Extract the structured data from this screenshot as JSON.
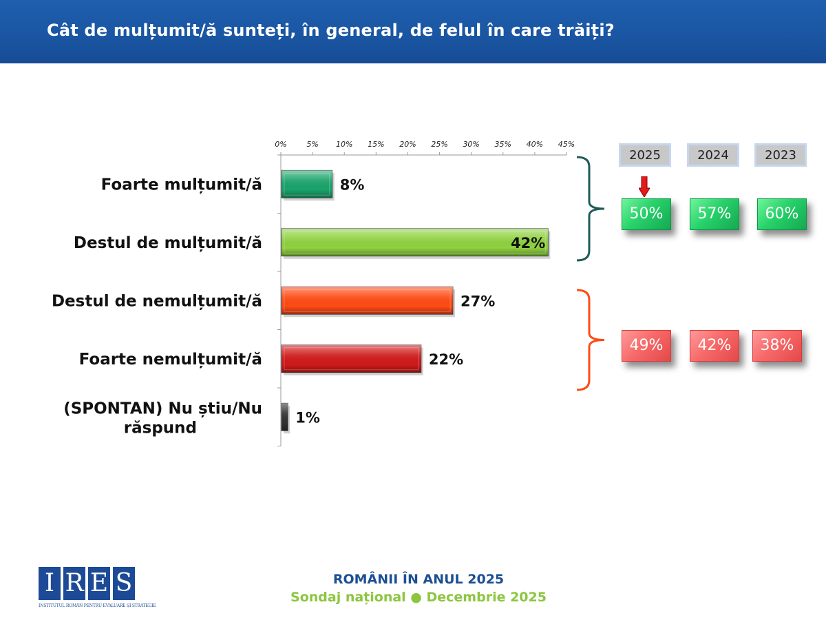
{
  "header": {
    "title": "Cât de mulțumit/ă sunteți, în general, de felul în care trăiți?"
  },
  "chart_data": {
    "type": "bar",
    "orientation": "horizontal",
    "title": "Cât de mulțumit/ă sunteți, în general, de felul în care trăiți?",
    "categories": [
      "Foarte mulțumit/ă",
      "Destul de mulțumit/ă",
      "Destul de nemulțumit/ă",
      "Foarte nemulțumit/ă",
      "(SPONTAN) Nu știu/Nu răspund"
    ],
    "values": [
      8,
      42,
      27,
      22,
      1
    ],
    "value_labels": [
      "8%",
      "42%",
      "27%",
      "22%",
      "1%"
    ],
    "bar_colors": [
      "#1aa36b",
      "#8fd13f",
      "#ff4a14",
      "#d01a1a",
      "#333333"
    ],
    "xlim": [
      0,
      45
    ],
    "xticks": [
      "0%",
      "5%",
      "10%",
      "15%",
      "20%",
      "25%",
      "30%",
      "35%",
      "40%",
      "45%"
    ],
    "xlabel": "",
    "ylabel": "",
    "grid": false,
    "axis_position": "top"
  },
  "comparison": {
    "years": [
      "2025",
      "2024",
      "2023"
    ],
    "satisfied": {
      "values": [
        "50%",
        "57%",
        "60%"
      ],
      "color": "#27d26a",
      "bracket_color": "#1d5c58"
    },
    "dissatisfied": {
      "values": [
        "49%",
        "42%",
        "38%"
      ],
      "color": "#f76a6a",
      "bracket_color": "#ff4a14"
    },
    "marker": "down-arrow-icon",
    "marker_color": "#e31b1b"
  },
  "footer": {
    "title": "ROMÂNII ÎN ANUL 2025",
    "subtitle": "Sondaj național ● Decembrie 2025"
  },
  "logo": {
    "letters": [
      "I",
      "R",
      "E",
      "S"
    ],
    "caption": "INSTITUTUL ROMÂN PENTRU EVALUARE ȘI STRATEGIE"
  }
}
